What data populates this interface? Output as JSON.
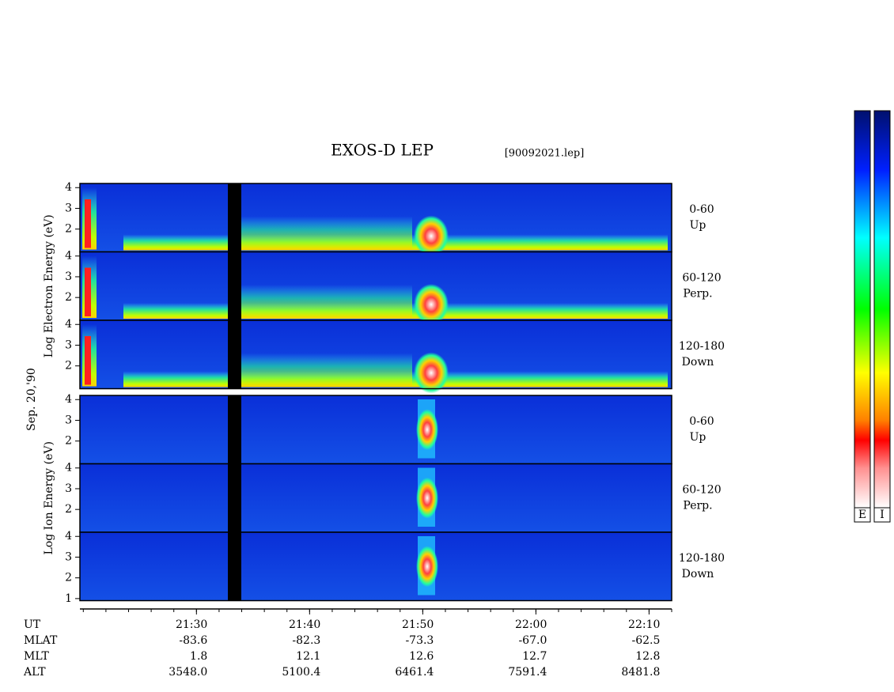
{
  "chart_data": {
    "type": "spectrogram",
    "title": "EXOS-D LEP",
    "subtitle": "[90092021.lep]",
    "date_label": "Sep. 20,'90",
    "xlim": [
      19.7,
      72
    ],
    "ylim": [
      0.9,
      4.2
    ],
    "xticks": [
      {
        "value": 30,
        "label": "21:30"
      },
      {
        "value": 40,
        "label": "21:40"
      },
      {
        "value": 50,
        "label": "21:50"
      },
      {
        "value": 60,
        "label": "22:00"
      },
      {
        "value": 70,
        "label": "22:10"
      }
    ],
    "groups": [
      {
        "ylabel": "Log   Electron   Energy (eV)",
        "panels": [
          {
            "label": [
              "0-60",
              "Up"
            ],
            "yticks": [
              2,
              3,
              4
            ]
          },
          {
            "label": [
              "60-120",
              "Perp."
            ],
            "yticks": [
              2,
              3,
              4
            ]
          },
          {
            "label": [
              "120-180",
              "Down"
            ],
            "yticks": [
              2,
              3,
              4
            ]
          }
        ]
      },
      {
        "ylabel": "Log   Ion   Energy (eV)",
        "panels": [
          {
            "label": [
              "0-60",
              "Up"
            ],
            "yticks": [
              2,
              3,
              4
            ]
          },
          {
            "label": [
              "60-120",
              "Perp."
            ],
            "yticks": [
              2,
              3,
              4
            ]
          },
          {
            "label": [
              "120-180",
              "Down"
            ],
            "yticks": [
              1,
              2,
              3,
              4
            ]
          }
        ]
      }
    ],
    "ephemeris": [
      {
        "label": "UT",
        "values": [
          "21:30",
          "21:40",
          "21:50",
          "22:00",
          "22:10"
        ]
      },
      {
        "label": "MLAT",
        "values": [
          "-83.6",
          "-82.3",
          "-73.3",
          "-67.0",
          "-62.5"
        ]
      },
      {
        "label": "MLT",
        "values": [
          "1.8",
          "12.1",
          "12.6",
          "12.7",
          "12.8"
        ]
      },
      {
        "label": "ALT",
        "values": [
          "3548.0",
          "5100.4",
          "6461.4",
          "7591.4",
          "8481.8"
        ]
      }
    ],
    "colorbars": [
      "E",
      "I"
    ]
  }
}
